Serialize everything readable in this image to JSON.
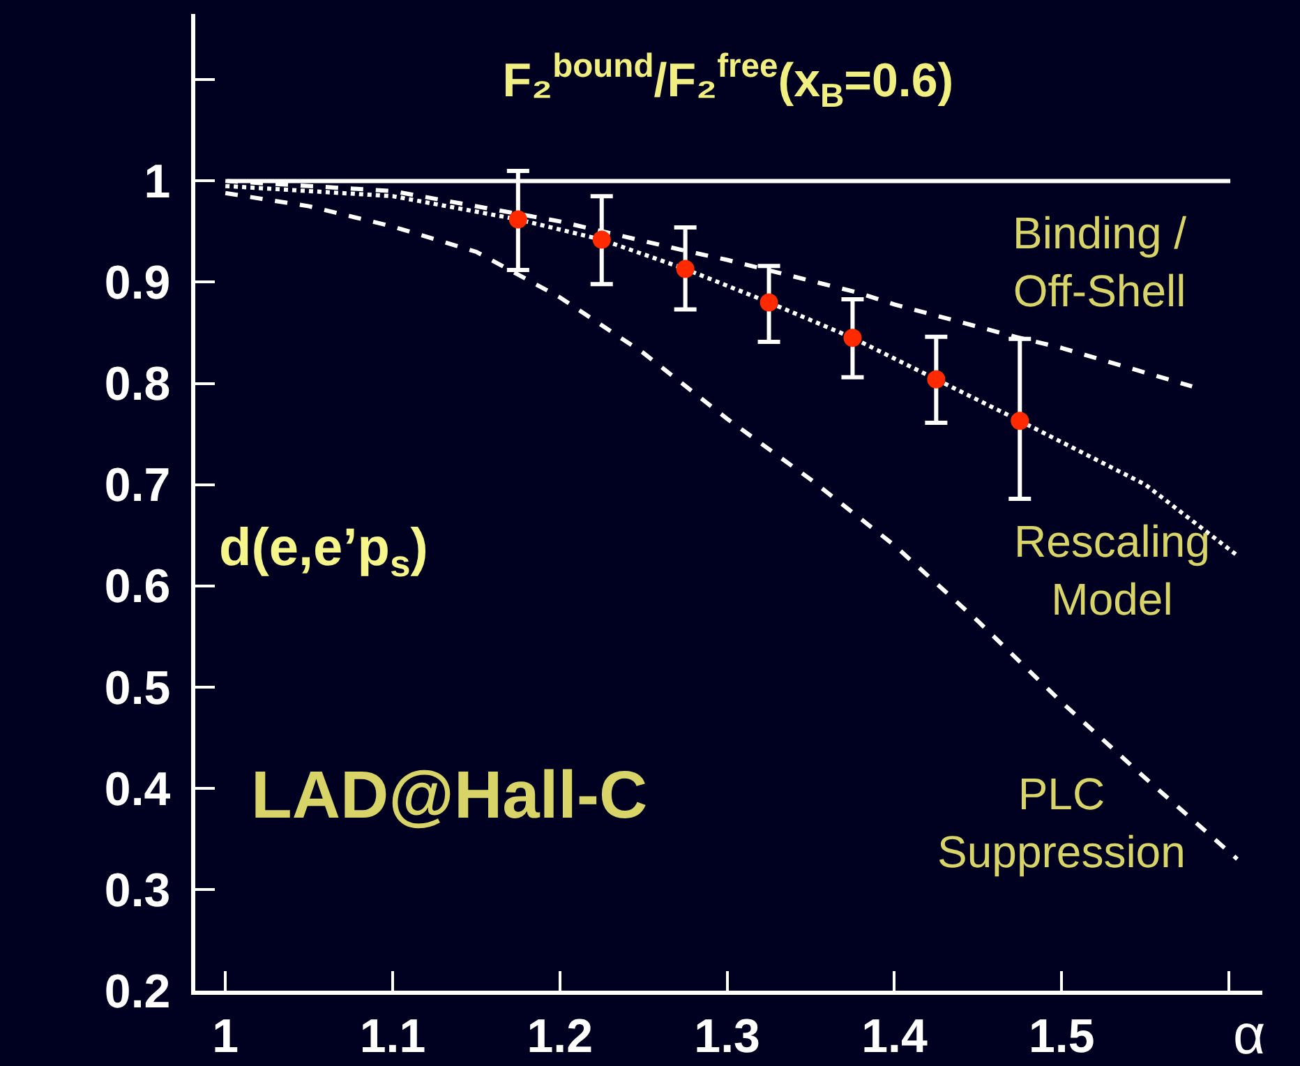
{
  "chart_data": {
    "type": "line",
    "title": "F₂$^{bound}$/F₂$^{free}$(x$_{B}$=0.6)",
    "xlabel": "α",
    "xlim": [
      0.982,
      1.62
    ],
    "xticks": [
      1,
      1.1,
      1.2,
      1.3,
      1.4,
      1.5,
      {
        "value": 1.6,
        "label": null
      }
    ],
    "ylim": [
      0.2,
      1.165
    ],
    "yticks": [
      0.2,
      0.3,
      0.4,
      0.5,
      0.6,
      0.7,
      0.8,
      0.9,
      1,
      {
        "value": 1.1,
        "label": null
      }
    ],
    "grid": false,
    "legend": false,
    "ref_lines": [
      {
        "axis": "y",
        "value": 1,
        "color": "#ffffff",
        "line_style": "solid"
      }
    ],
    "annotations": [
      {
        "text": "d(e,e’p$_{s}$)"
      },
      {
        "text": "LAD@Hall-C"
      }
    ],
    "series": [
      {
        "name": "Binding / Off-Shell",
        "color": "#ffffff",
        "line_style": "dashed",
        "marker": "none",
        "x": [
          1,
          1.1,
          1.2,
          1.275,
          1.3,
          1.3775,
          1.4,
          1.4725,
          1.5,
          1.578
        ],
        "values": [
          1,
          0.99,
          0.96,
          0.931,
          0.922,
          0.89,
          0.878,
          0.846,
          0.835,
          0.797
        ]
      },
      {
        "name": "Rescaling Model",
        "color": "#ffffff",
        "line_style": "dotted",
        "marker": "none",
        "x": [
          1,
          1.1,
          1.175,
          1.225,
          1.275,
          1.325,
          1.375,
          1.425,
          1.475,
          1.55,
          1.605
        ],
        "values": [
          0.995,
          0.985,
          0.962,
          0.942,
          0.913,
          0.88,
          0.845,
          0.804,
          0.763,
          0.7,
          0.63
        ]
      },
      {
        "name": "PLC Suppression",
        "color": "#ffffff",
        "line_style": "dashed",
        "marker": "none",
        "x": [
          1,
          1.05,
          1.1,
          1.15,
          1.2,
          1.25,
          1.3,
          1.35,
          1.4,
          1.45,
          1.5,
          1.55,
          1.605
        ],
        "values": [
          0.988,
          0.975,
          0.955,
          0.93,
          0.885,
          0.83,
          0.765,
          0.705,
          0.64,
          0.565,
          0.485,
          0.41,
          0.33
        ]
      },
      {
        "type": "scatter",
        "color": "#ff2a00",
        "marker": "circle",
        "x": [
          1.175,
          1.225,
          1.275,
          1.325,
          1.375,
          1.425,
          1.475
        ],
        "values": [
          0.962,
          0.942,
          0.913,
          0.88,
          0.845,
          0.804,
          0.763
        ],
        "errors": [
          [
            0.912,
            1.01
          ],
          [
            0.898,
            0.985
          ],
          [
            0.873,
            0.954
          ],
          [
            0.841,
            0.916
          ],
          [
            0.806,
            0.883
          ],
          [
            0.761,
            0.846
          ],
          [
            0.686,
            0.844
          ]
        ]
      }
    ]
  }
}
